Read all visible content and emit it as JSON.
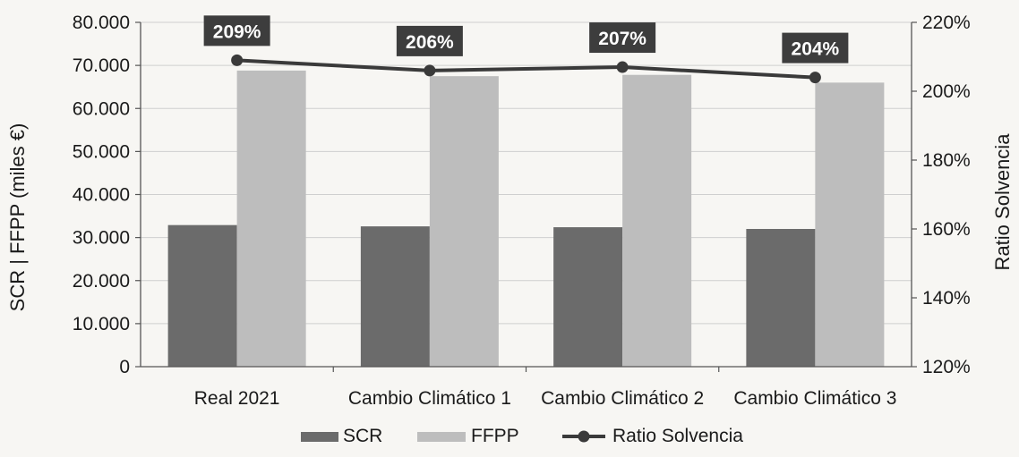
{
  "chart_data": {
    "type": "bar",
    "categories": [
      "Real 2021",
      "Cambio Climático 1",
      "Cambio Climático 2",
      "Cambio Climático 3"
    ],
    "series": [
      {
        "name": "SCR",
        "type": "bar",
        "axis": "left",
        "values": [
          32900,
          32600,
          32400,
          32000
        ]
      },
      {
        "name": "FFPP",
        "type": "bar",
        "axis": "left",
        "values": [
          68800,
          67500,
          67800,
          66000
        ]
      },
      {
        "name": "Ratio Solvencia",
        "type": "line",
        "axis": "right",
        "values": [
          209,
          206,
          207,
          204
        ],
        "data_labels": [
          "209%",
          "206%",
          "207%",
          "204%"
        ]
      }
    ],
    "ylabel": "SCR | FFPP (miles €)",
    "ylim": [
      0,
      80000
    ],
    "yticks": [
      "0",
      "10.000",
      "20.000",
      "30.000",
      "40.000",
      "50.000",
      "60.000",
      "70.000",
      "80.000"
    ],
    "y2label": "Ratio Solvencia",
    "y2lim": [
      120,
      220
    ],
    "y2ticks": [
      "120%",
      "140%",
      "160%",
      "180%",
      "200%",
      "220%"
    ],
    "grid": true,
    "legend": "bottom",
    "colors": {
      "SCR": "#6b6b6b",
      "FFPP": "#bdbdbd",
      "Ratio Solvencia": "#3a3a3a",
      "label_box": "#3d3d3d",
      "grid": "#cfcfcf"
    }
  }
}
